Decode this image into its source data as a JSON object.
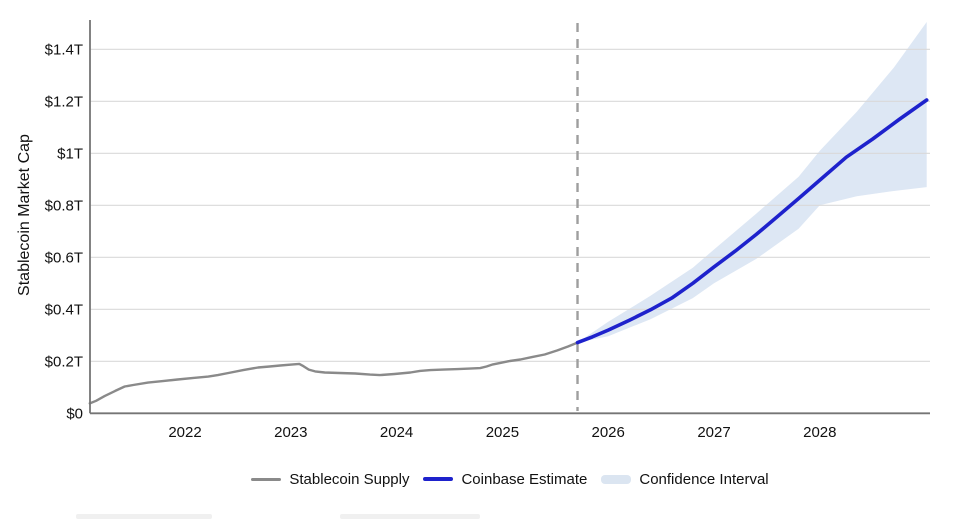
{
  "chart_data": {
    "type": "line",
    "title": "",
    "y_axis": {
      "title": "Stablecoin Market Cap",
      "tick_values": [
        0,
        0.2,
        0.4,
        0.6,
        0.8,
        1.0,
        1.2,
        1.4
      ],
      "tick_labels": [
        "$0",
        "$0.2T",
        "$0.4T",
        "$0.6T",
        "$0.8T",
        "$1T",
        "$1.2T",
        "$1.4T"
      ],
      "range": [
        0,
        1.51
      ],
      "unit": "trillions of USD"
    },
    "x_axis": {
      "tick_years": [
        2022,
        2023,
        2024,
        2025,
        2026,
        2027,
        2028
      ],
      "range": [
        2021.1,
        2029.04
      ]
    },
    "forecast_divider_year": 2025.71,
    "grid": "horizontal",
    "legend_position": "bottom",
    "series": [
      {
        "name": "Stablecoin Supply",
        "type": "line",
        "color": "#8a8a8a",
        "points": [
          [
            2021.1,
            0.038
          ],
          [
            2021.16,
            0.048
          ],
          [
            2021.24,
            0.066
          ],
          [
            2021.34,
            0.086
          ],
          [
            2021.43,
            0.103
          ],
          [
            2021.51,
            0.109
          ],
          [
            2021.65,
            0.118
          ],
          [
            2021.79,
            0.124
          ],
          [
            2021.93,
            0.13
          ],
          [
            2022.08,
            0.136
          ],
          [
            2022.22,
            0.141
          ],
          [
            2022.31,
            0.147
          ],
          [
            2022.41,
            0.155
          ],
          [
            2022.55,
            0.166
          ],
          [
            2022.69,
            0.176
          ],
          [
            2022.8,
            0.18
          ],
          [
            2022.9,
            0.184
          ],
          [
            2023.02,
            0.188
          ],
          [
            2023.08,
            0.19
          ],
          [
            2023.12,
            0.181
          ],
          [
            2023.17,
            0.168
          ],
          [
            2023.23,
            0.161
          ],
          [
            2023.32,
            0.157
          ],
          [
            2023.46,
            0.155
          ],
          [
            2023.61,
            0.153
          ],
          [
            2023.75,
            0.149
          ],
          [
            2023.84,
            0.147
          ],
          [
            2023.98,
            0.151
          ],
          [
            2024.13,
            0.157
          ],
          [
            2024.22,
            0.163
          ],
          [
            2024.32,
            0.166
          ],
          [
            2024.44,
            0.168
          ],
          [
            2024.58,
            0.17
          ],
          [
            2024.69,
            0.172
          ],
          [
            2024.79,
            0.174
          ],
          [
            2024.85,
            0.18
          ],
          [
            2024.91,
            0.188
          ],
          [
            2024.98,
            0.194
          ],
          [
            2025.07,
            0.201
          ],
          [
            2025.17,
            0.207
          ],
          [
            2025.28,
            0.216
          ],
          [
            2025.4,
            0.226
          ],
          [
            2025.52,
            0.242
          ],
          [
            2025.62,
            0.257
          ],
          [
            2025.71,
            0.272
          ]
        ]
      },
      {
        "name": "Coinbase Estimate",
        "type": "line",
        "color": "#1e22cc",
        "points": [
          [
            2025.71,
            0.272
          ],
          [
            2025.85,
            0.294
          ],
          [
            2026.0,
            0.32
          ],
          [
            2026.2,
            0.358
          ],
          [
            2026.4,
            0.398
          ],
          [
            2026.6,
            0.443
          ],
          [
            2026.8,
            0.5
          ],
          [
            2027.0,
            0.563
          ],
          [
            2027.2,
            0.624
          ],
          [
            2027.4,
            0.688
          ],
          [
            2027.6,
            0.757
          ],
          [
            2027.8,
            0.826
          ],
          [
            2028.0,
            0.897
          ],
          [
            2028.25,
            0.985
          ],
          [
            2028.5,
            1.055
          ],
          [
            2028.75,
            1.13
          ],
          [
            2029.01,
            1.205
          ]
        ]
      },
      {
        "name": "Confidence Interval",
        "type": "band",
        "color": "#dde7f4",
        "lower": [
          [
            2025.71,
            0.272
          ],
          [
            2026.0,
            0.296
          ],
          [
            2026.4,
            0.362
          ],
          [
            2026.8,
            0.443
          ],
          [
            2027.0,
            0.5
          ],
          [
            2027.4,
            0.594
          ],
          [
            2027.8,
            0.71
          ],
          [
            2028.0,
            0.8
          ],
          [
            2028.35,
            0.835
          ],
          [
            2028.7,
            0.855
          ],
          [
            2029.01,
            0.87
          ]
        ],
        "upper": [
          [
            2025.71,
            0.272
          ],
          [
            2026.0,
            0.352
          ],
          [
            2026.4,
            0.452
          ],
          [
            2026.8,
            0.56
          ],
          [
            2027.0,
            0.63
          ],
          [
            2027.4,
            0.768
          ],
          [
            2027.8,
            0.91
          ],
          [
            2028.0,
            1.01
          ],
          [
            2028.35,
            1.16
          ],
          [
            2028.7,
            1.33
          ],
          [
            2029.01,
            1.505
          ]
        ]
      }
    ]
  },
  "legend": {
    "items": [
      {
        "label": "Stablecoin Supply",
        "swatch": "line",
        "color": "#8a8a8a"
      },
      {
        "label": "Coinbase Estimate",
        "swatch": "line",
        "color": "#1e22cc"
      },
      {
        "label": "Confidence Interval",
        "swatch": "band",
        "color": "#dbe5f1"
      }
    ]
  },
  "style_colors": {
    "grid": "#d9d9d9",
    "axis": "#757575",
    "divider": "#9e9e9e",
    "text": "#111111"
  }
}
